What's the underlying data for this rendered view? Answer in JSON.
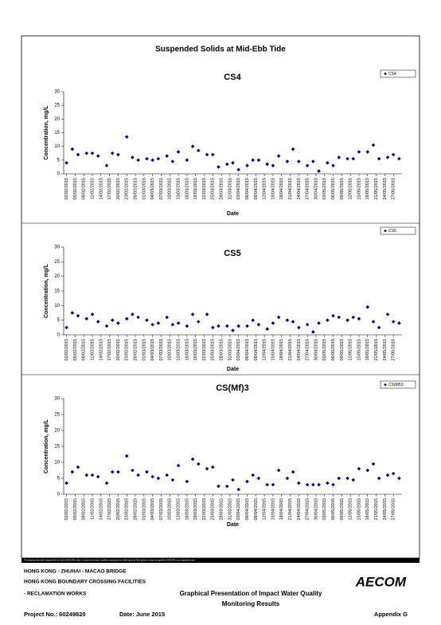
{
  "title": "Suspended Solids at Mid-Ebb Tide",
  "chart_data": [
    {
      "type": "scatter",
      "title": "CS4",
      "x_label": "Date",
      "y_label": "Concentration, mg/L",
      "legend": "top-right",
      "x": [
        "02/02/2015",
        "04/02/2015",
        "06/02/2015",
        "09/02/2015",
        "11/02/2015",
        "13/02/2015",
        "16/02/2015",
        "18/02/2015",
        "20/02/2015",
        "23/02/2015",
        "25/02/2015",
        "27/02/2015",
        "02/03/2015",
        "04/03/2015",
        "06/03/2015",
        "09/03/2015",
        "11/03/2015",
        "13/03/2015",
        "16/03/2015",
        "18/03/2015",
        "20/03/2015",
        "23/03/2015",
        "25/03/2015",
        "27/03/2015",
        "30/03/2015",
        "01/04/2015",
        "03/04/2015",
        "06/04/2015",
        "08/04/2015",
        "10/04/2015",
        "13/04/2015",
        "15/04/2015",
        "17/04/2015",
        "20/04/2015",
        "22/04/2015",
        "24/04/2015",
        "27/04/2015",
        "29/04/2015",
        "01/05/2015",
        "04/05/2015",
        "06/05/2015",
        "08/05/2015",
        "11/05/2015",
        "13/05/2015",
        "15/05/2015",
        "18/05/2015",
        "20/05/2015",
        "22/05/2015",
        "25/05/2015",
        "27/05/2015",
        "29/05/2015"
      ],
      "series": [
        {
          "name": "CS4",
          "color": "#000080",
          "values": [
            4,
            9,
            7,
            7.5,
            7.5,
            6.5,
            3,
            7.5,
            7,
            13.5,
            6,
            5,
            5.5,
            5,
            5.5,
            6.5,
            4.5,
            8,
            5,
            10,
            8.5,
            7,
            7,
            2.5,
            3.5,
            4,
            1.5,
            3,
            5,
            5,
            3.5,
            3,
            6.5,
            4.5,
            9,
            4.5,
            3,
            4.5,
            1,
            4,
            3,
            6,
            5.5,
            5.5,
            8,
            8,
            10.5,
            5.5,
            6,
            7,
            5.5
          ]
        }
      ],
      "xlim": [
        "01/02/2015",
        "30/05/2015"
      ],
      "xticks": [
        "02/02/2015",
        "05/02/2015",
        "08/02/2015",
        "11/02/2015",
        "14/02/2015",
        "17/02/2015",
        "20/02/2015",
        "23/02/2015",
        "26/02/2015",
        "01/03/2015",
        "04/03/2015",
        "07/03/2015",
        "10/03/2015",
        "13/03/2015",
        "16/03/2015",
        "19/03/2015",
        "22/03/2015",
        "25/03/2015",
        "28/03/2015",
        "31/03/2015",
        "03/04/2015",
        "06/04/2015",
        "09/04/2015",
        "12/04/2015",
        "15/04/2015",
        "18/04/2015",
        "21/04/2015",
        "24/04/2015",
        "27/04/2015",
        "30/04/2015",
        "03/05/2015",
        "06/05/2015",
        "09/05/2015",
        "12/05/2015",
        "15/05/2015",
        "18/05/2015",
        "21/05/2015",
        "24/05/2015",
        "27/05/2015"
      ],
      "ylim": [
        0,
        30
      ],
      "yticks": [
        0,
        5,
        10,
        15,
        20,
        25,
        30
      ]
    },
    {
      "type": "scatter",
      "title": "CS5",
      "x_label": "Date",
      "y_label": "Concentration, mg/L",
      "legend": "top-right",
      "x": [
        "02/02/2015",
        "04/02/2015",
        "06/02/2015",
        "09/02/2015",
        "11/02/2015",
        "13/02/2015",
        "16/02/2015",
        "18/02/2015",
        "20/02/2015",
        "23/02/2015",
        "25/02/2015",
        "27/02/2015",
        "02/03/2015",
        "04/03/2015",
        "06/03/2015",
        "09/03/2015",
        "11/03/2015",
        "13/03/2015",
        "16/03/2015",
        "18/03/2015",
        "20/03/2015",
        "23/03/2015",
        "25/03/2015",
        "27/03/2015",
        "30/03/2015",
        "01/04/2015",
        "03/04/2015",
        "06/04/2015",
        "08/04/2015",
        "10/04/2015",
        "13/04/2015",
        "15/04/2015",
        "17/04/2015",
        "20/04/2015",
        "22/04/2015",
        "24/04/2015",
        "27/04/2015",
        "29/04/2015",
        "01/05/2015",
        "04/05/2015",
        "06/05/2015",
        "08/05/2015",
        "11/05/2015",
        "13/05/2015",
        "15/05/2015",
        "18/05/2015",
        "20/05/2015",
        "22/05/2015",
        "25/05/2015",
        "27/05/2015",
        "29/05/2015"
      ],
      "series": [
        {
          "name": "CS5",
          "color": "#000080",
          "values": [
            2.5,
            7.5,
            6.5,
            5.5,
            7,
            4.5,
            3,
            5,
            4,
            5.5,
            7,
            6,
            5,
            3.5,
            4,
            6,
            3.5,
            4,
            3,
            7,
            4.5,
            7,
            2.5,
            3,
            3,
            1.5,
            3,
            3,
            5,
            3.5,
            2,
            4,
            6,
            5,
            4.5,
            2.5,
            3.5,
            1,
            4,
            5,
            6.5,
            6,
            5,
            6,
            5.5,
            9.5,
            4.5,
            2.5,
            7,
            4.5,
            4
          ]
        }
      ],
      "xlim": [
        "01/02/2015",
        "30/05/2015"
      ],
      "xticks": [
        "02/02/2015",
        "05/02/2015",
        "08/02/2015",
        "11/02/2015",
        "14/02/2015",
        "17/02/2015",
        "20/02/2015",
        "23/02/2015",
        "26/02/2015",
        "01/03/2015",
        "04/03/2015",
        "07/03/2015",
        "10/03/2015",
        "13/03/2015",
        "16/03/2015",
        "19/03/2015",
        "22/03/2015",
        "25/03/2015",
        "28/03/2015",
        "31/03/2015",
        "03/04/2015",
        "06/04/2015",
        "09/04/2015",
        "12/04/2015",
        "15/04/2015",
        "18/04/2015",
        "21/04/2015",
        "24/04/2015",
        "27/04/2015",
        "30/04/2015",
        "03/05/2015",
        "06/05/2015",
        "09/05/2015",
        "12/05/2015",
        "15/05/2015",
        "18/05/2015",
        "21/05/2015",
        "24/05/2015",
        "27/05/2015"
      ],
      "ylim": [
        0,
        30
      ],
      "yticks": [
        0,
        5,
        10,
        15,
        20,
        25,
        30
      ]
    },
    {
      "type": "scatter",
      "title": "CS(Mf)3",
      "x_label": "Date",
      "y_label": "Concentration, mg/L",
      "legend": "top-right",
      "x": [
        "02/02/2015",
        "04/02/2015",
        "06/02/2015",
        "09/02/2015",
        "11/02/2015",
        "13/02/2015",
        "16/02/2015",
        "18/02/2015",
        "20/02/2015",
        "23/02/2015",
        "25/02/2015",
        "27/02/2015",
        "02/03/2015",
        "04/03/2015",
        "06/03/2015",
        "09/03/2015",
        "11/03/2015",
        "13/03/2015",
        "16/03/2015",
        "18/03/2015",
        "20/03/2015",
        "23/03/2015",
        "25/03/2015",
        "27/03/2015",
        "30/03/2015",
        "01/04/2015",
        "03/04/2015",
        "06/04/2015",
        "08/04/2015",
        "10/04/2015",
        "13/04/2015",
        "15/04/2015",
        "17/04/2015",
        "20/04/2015",
        "22/04/2015",
        "24/04/2015",
        "27/04/2015",
        "29/04/2015",
        "01/05/2015",
        "04/05/2015",
        "06/05/2015",
        "08/05/2015",
        "11/05/2015",
        "13/05/2015",
        "15/05/2015",
        "18/05/2015",
        "20/05/2015",
        "22/05/2015",
        "25/05/2015",
        "27/05/2015",
        "29/05/2015"
      ],
      "series": [
        {
          "name": "CS(Mf)3",
          "color": "#000080",
          "values": [
            3.5,
            7,
            8.5,
            6,
            6,
            5.5,
            3.5,
            7,
            7,
            12,
            7.5,
            6,
            7,
            5.5,
            5,
            6,
            4.5,
            9,
            4,
            11,
            9.5,
            8,
            8.5,
            2.5,
            2.5,
            4.5,
            1.5,
            4,
            6,
            5,
            3,
            3,
            7.5,
            5,
            7,
            3.5,
            3,
            3,
            3,
            3.5,
            3,
            5,
            5,
            4.5,
            8,
            7.5,
            9.5,
            5,
            6,
            6.5,
            5
          ]
        }
      ],
      "xlim": [
        "01/02/2015",
        "30/05/2015"
      ],
      "xticks": [
        "02/02/2015",
        "05/02/2015",
        "08/02/2015",
        "11/02/2015",
        "14/02/2015",
        "17/02/2015",
        "20/02/2015",
        "23/02/2015",
        "26/02/2015",
        "01/03/2015",
        "04/03/2015",
        "07/03/2015",
        "10/03/2015",
        "13/03/2015",
        "16/03/2015",
        "19/03/2015",
        "22/03/2015",
        "25/03/2015",
        "28/03/2015",
        "31/03/2015",
        "03/04/2015",
        "06/04/2015",
        "09/04/2015",
        "12/04/2015",
        "15/04/2015",
        "18/04/2015",
        "21/04/2015",
        "24/04/2015",
        "27/04/2015",
        "30/04/2015",
        "03/05/2015",
        "06/05/2015",
        "09/05/2015",
        "12/05/2015",
        "15/05/2015",
        "18/05/2015",
        "21/05/2015",
        "24/05/2015",
        "27/05/2015"
      ],
      "ylim": [
        0,
        30
      ],
      "yticks": [
        0,
        5,
        10,
        15,
        20,
        25,
        30
      ]
    }
  ],
  "footer": {
    "disclaimer": "This drawing has been prepared for the use of AECOM's client. It may not be used, modified, reproduced or relied upon by third parties, except as agreed by AECOM or as required by law.",
    "project_lines": [
      "HONG KONG - ZHUHAI - MACAO BRIDGE",
      "HONG KONG BOUNDARY CROSSING FACILITIES",
      "- RECLAMATION WORKS"
    ],
    "drawing_title": [
      "Graphical Presentation of Impact Water Quality",
      "Monitoring Results"
    ],
    "logo": "AECOM",
    "project_no": "Project No.: 60249820",
    "date": "Date: June 2015",
    "appendix": "Appendix G"
  }
}
